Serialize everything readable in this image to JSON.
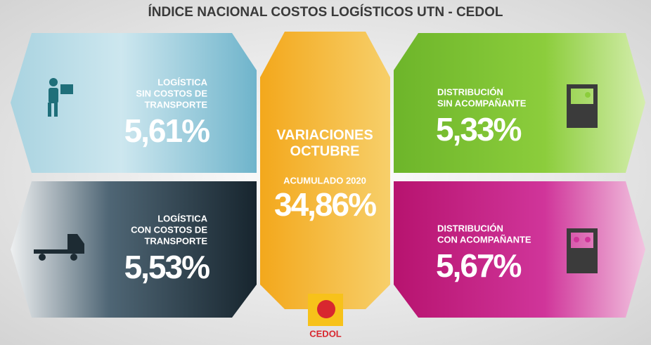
{
  "title": "ÍNDICE NACIONAL COSTOS LOGÍSTICOS UTN - CEDOL",
  "panels": [
    {
      "label_lines": [
        "LOGÍSTICA",
        "SIN COSTOS DE",
        "TRANSPORTE"
      ],
      "value": "5,61%"
    },
    {
      "label_lines": [
        "LOGÍSTICA",
        "CON COSTOS DE",
        "TRANSPORTE"
      ],
      "value": "5,53%"
    },
    {
      "label_lines": [
        "DISTRIBUCIÓN",
        "SIN ACOMPAÑANTE"
      ],
      "value": "5,33%"
    },
    {
      "label_lines": [
        "DISTRIBUCIÓN",
        "CON ACOMPAÑANTE"
      ],
      "value": "5,67%"
    }
  ],
  "center": {
    "lines": [
      "VARIACIONES",
      "OCTUBRE"
    ],
    "subtitle": "ACUMULADO 2020",
    "value": "34,86%"
  },
  "logo": "CEDOL"
}
